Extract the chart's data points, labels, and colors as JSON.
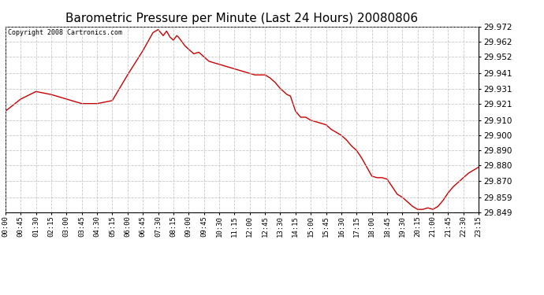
{
  "title": "Barometric Pressure per Minute (Last 24 Hours) 20080806",
  "copyright": "Copyright 2008 Cartronics.com",
  "line_color": "#cc0000",
  "background_color": "#ffffff",
  "grid_color": "#bbbbbb",
  "title_fontsize": 11,
  "ylabel_fontsize": 7.5,
  "xlabel_fontsize": 6.5,
  "ylim": [
    29.849,
    29.972
  ],
  "yticks": [
    29.972,
    29.962,
    29.952,
    29.941,
    29.931,
    29.921,
    29.91,
    29.9,
    29.89,
    29.88,
    29.87,
    29.859,
    29.849
  ],
  "xtick_labels": [
    "00:00",
    "00:45",
    "01:30",
    "02:15",
    "03:00",
    "03:45",
    "04:30",
    "05:15",
    "06:00",
    "06:45",
    "07:30",
    "08:15",
    "09:00",
    "09:45",
    "10:30",
    "11:15",
    "12:00",
    "12:45",
    "13:30",
    "14:15",
    "15:00",
    "15:45",
    "16:30",
    "17:15",
    "18:00",
    "18:45",
    "19:30",
    "20:15",
    "21:00",
    "21:45",
    "22:30",
    "23:15"
  ],
  "key_x": [
    0,
    45,
    90,
    135,
    180,
    225,
    270,
    315,
    360,
    405,
    420,
    435,
    450,
    465,
    475,
    485,
    495,
    505,
    510,
    520,
    530,
    540,
    555,
    570,
    585,
    600,
    615,
    630,
    645,
    660,
    675,
    690,
    705,
    720,
    735,
    750,
    765,
    780,
    795,
    810,
    820,
    830,
    840,
    855,
    870,
    885,
    900,
    915,
    930,
    945,
    960,
    975,
    990,
    1005,
    1020,
    1035,
    1050,
    1065,
    1080,
    1095,
    1110,
    1125,
    1140,
    1155,
    1170,
    1185,
    1200,
    1215,
    1230,
    1245,
    1260,
    1275,
    1290,
    1305,
    1320,
    1335,
    1350,
    1365,
    1380,
    1395
  ],
  "key_y": [
    29.916,
    29.924,
    29.929,
    29.927,
    29.924,
    29.921,
    29.921,
    29.923,
    29.94,
    29.956,
    29.962,
    29.968,
    29.97,
    29.966,
    29.969,
    29.965,
    29.963,
    29.966,
    29.965,
    29.962,
    29.959,
    29.957,
    29.954,
    29.955,
    29.952,
    29.949,
    29.948,
    29.947,
    29.946,
    29.945,
    29.944,
    29.943,
    29.942,
    29.941,
    29.94,
    29.94,
    29.94,
    29.938,
    29.935,
    29.931,
    29.929,
    29.927,
    29.926,
    29.916,
    29.912,
    29.912,
    29.91,
    29.909,
    29.908,
    29.907,
    29.904,
    29.902,
    29.9,
    29.897,
    29.893,
    29.89,
    29.885,
    29.879,
    29.873,
    29.872,
    29.872,
    29.871,
    29.866,
    29.861,
    29.859,
    29.856,
    29.853,
    29.851,
    29.851,
    29.852,
    29.851,
    29.853,
    29.857,
    29.862,
    29.866,
    29.869,
    29.872,
    29.875,
    29.877,
    29.879
  ]
}
